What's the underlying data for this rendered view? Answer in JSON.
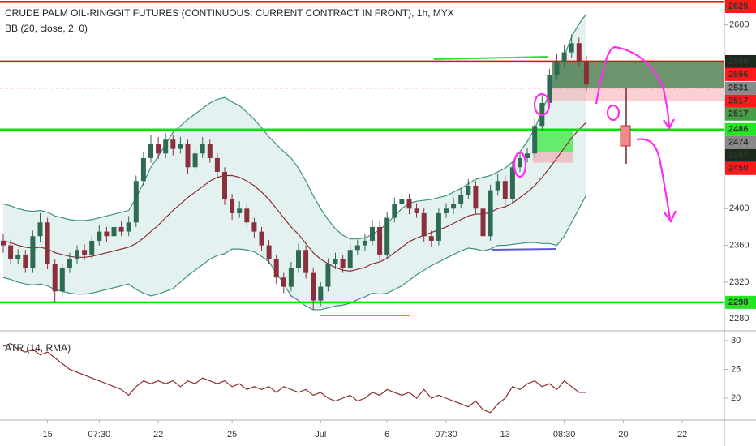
{
  "chart_data": {
    "type": "candlestick",
    "title": "CRUDE PALM OIL-RINGGIT FUTURES (CONTINUOUS: CURRENT CONTRACT IN FRONT), 1h, MYX",
    "indicator_label": "BB (20, close, 2, 0)",
    "categories": [
      null,
      null,
      null,
      null,
      null,
      null,
      "15",
      null,
      null,
      null,
      null,
      null,
      null,
      "07:30",
      null,
      null,
      null,
      null,
      null,
      null,
      null,
      "22",
      null,
      null,
      null,
      null,
      null,
      null,
      null,
      null,
      null,
      "25",
      null,
      null,
      null,
      null,
      null,
      null,
      null,
      null,
      null,
      null,
      null,
      "Jul",
      null,
      null,
      null,
      null,
      null,
      null,
      null,
      null,
      "6",
      null,
      null,
      null,
      null,
      null,
      null,
      null,
      "07:30",
      null,
      null,
      null,
      null,
      null,
      null,
      null,
      "13",
      null,
      null,
      null,
      null,
      null,
      null,
      null,
      "08:30",
      null,
      null,
      null,
      null,
      null,
      null,
      null,
      "20",
      null,
      null,
      null,
      null,
      null,
      null,
      null,
      "22",
      null,
      null,
      null
    ],
    "candles": [
      [
        2365,
        2372,
        2352,
        2360
      ],
      [
        2360,
        2366,
        2340,
        2345
      ],
      [
        2345,
        2356,
        2340,
        2350
      ],
      [
        2350,
        2355,
        2330,
        2335
      ],
      [
        2335,
        2376,
        2330,
        2370
      ],
      [
        2370,
        2395,
        2364,
        2385
      ],
      [
        2385,
        2390,
        2334,
        2340
      ],
      [
        2340,
        2345,
        2298,
        2310
      ],
      [
        2310,
        2340,
        2304,
        2335
      ],
      [
        2335,
        2352,
        2330,
        2345
      ],
      [
        2345,
        2360,
        2340,
        2355
      ],
      [
        2355,
        2361,
        2344,
        2350
      ],
      [
        2350,
        2370,
        2345,
        2365
      ],
      [
        2365,
        2382,
        2360,
        2375
      ],
      [
        2375,
        2380,
        2364,
        2370
      ],
      [
        2370,
        2386,
        2365,
        2380
      ],
      [
        2380,
        2386,
        2370,
        2375
      ],
      [
        2375,
        2392,
        2370,
        2385
      ],
      [
        2385,
        2436,
        2380,
        2430
      ],
      [
        2430,
        2462,
        2425,
        2455
      ],
      [
        2455,
        2480,
        2450,
        2470
      ],
      [
        2470,
        2478,
        2454,
        2460
      ],
      [
        2460,
        2482,
        2455,
        2475
      ],
      [
        2475,
        2480,
        2458,
        2465
      ],
      [
        2465,
        2478,
        2460,
        2470
      ],
      [
        2470,
        2475,
        2438,
        2445
      ],
      [
        2445,
        2466,
        2440,
        2460
      ],
      [
        2460,
        2478,
        2455,
        2470
      ],
      [
        2470,
        2475,
        2450,
        2455
      ],
      [
        2455,
        2460,
        2434,
        2440
      ],
      [
        2440,
        2445,
        2404,
        2410
      ],
      [
        2410,
        2416,
        2388,
        2395
      ],
      [
        2395,
        2408,
        2390,
        2400
      ],
      [
        2400,
        2405,
        2380,
        2385
      ],
      [
        2385,
        2390,
        2368,
        2375
      ],
      [
        2375,
        2380,
        2354,
        2360
      ],
      [
        2360,
        2366,
        2340,
        2345
      ],
      [
        2345,
        2350,
        2318,
        2325
      ],
      [
        2325,
        2330,
        2308,
        2315
      ],
      [
        2315,
        2342,
        2310,
        2335
      ],
      [
        2335,
        2362,
        2330,
        2355
      ],
      [
        2355,
        2360,
        2324,
        2330
      ],
      [
        2330,
        2336,
        2290,
        2300
      ],
      [
        2300,
        2320,
        2294,
        2315
      ],
      [
        2315,
        2346,
        2310,
        2340
      ],
      [
        2340,
        2352,
        2334,
        2345
      ],
      [
        2345,
        2350,
        2330,
        2335
      ],
      [
        2335,
        2362,
        2330,
        2355
      ],
      [
        2355,
        2366,
        2350,
        2360
      ],
      [
        2360,
        2372,
        2354,
        2365
      ],
      [
        2365,
        2388,
        2360,
        2380
      ],
      [
        2380,
        2386,
        2344,
        2350
      ],
      [
        2350,
        2396,
        2345,
        2390
      ],
      [
        2390,
        2412,
        2385,
        2405
      ],
      [
        2405,
        2418,
        2400,
        2410
      ],
      [
        2410,
        2416,
        2394,
        2400
      ],
      [
        2400,
        2406,
        2390,
        2395
      ],
      [
        2395,
        2400,
        2364,
        2370
      ],
      [
        2370,
        2376,
        2358,
        2365
      ],
      [
        2365,
        2400,
        2360,
        2395
      ],
      [
        2395,
        2406,
        2390,
        2400
      ],
      [
        2400,
        2412,
        2394,
        2405
      ],
      [
        2405,
        2422,
        2400,
        2415
      ],
      [
        2415,
        2432,
        2410,
        2425
      ],
      [
        2425,
        2430,
        2394,
        2400
      ],
      [
        2400,
        2406,
        2362,
        2370
      ],
      [
        2370,
        2426,
        2365,
        2420
      ],
      [
        2420,
        2438,
        2414,
        2430
      ],
      [
        2430,
        2436,
        2404,
        2410
      ],
      [
        2410,
        2452,
        2405,
        2445
      ],
      [
        2445,
        2462,
        2440,
        2455
      ],
      [
        2455,
        2466,
        2450,
        2460
      ],
      [
        2460,
        2498,
        2455,
        2490
      ],
      [
        2490,
        2522,
        2485,
        2515
      ],
      [
        2515,
        2552,
        2510,
        2545
      ],
      [
        2545,
        2568,
        2540,
        2560
      ],
      [
        2560,
        2578,
        2554,
        2570
      ],
      [
        2570,
        2590,
        2564,
        2580
      ],
      [
        2580,
        2586,
        2554,
        2560
      ],
      [
        2560,
        2566,
        2528,
        2535
      ]
    ],
    "up_color": "#2f6b52",
    "down_color": "#8a2f3c",
    "bb_middle": [
      2365,
      2363,
      2360,
      2358,
      2357,
      2358,
      2356,
      2352,
      2350,
      2348,
      2347,
      2347,
      2348,
      2350,
      2352,
      2354,
      2356,
      2358,
      2362,
      2368,
      2375,
      2382,
      2390,
      2398,
      2405,
      2412,
      2418,
      2424,
      2430,
      2434,
      2436,
      2436,
      2434,
      2430,
      2425,
      2418,
      2410,
      2400,
      2390,
      2380,
      2372,
      2362,
      2352,
      2345,
      2340,
      2336,
      2333,
      2332,
      2334,
      2336,
      2340,
      2342,
      2346,
      2352,
      2358,
      2364,
      2368,
      2371,
      2374,
      2377,
      2380,
      2384,
      2388,
      2392,
      2394,
      2394,
      2396,
      2400,
      2402,
      2406,
      2412,
      2418,
      2425,
      2434,
      2444,
      2455,
      2466,
      2477,
      2486,
      2494
    ],
    "bb_upper": [
      2405,
      2403,
      2400,
      2398,
      2397,
      2398,
      2396,
      2392,
      2390,
      2388,
      2387,
      2387,
      2388,
      2390,
      2392,
      2394,
      2396,
      2398,
      2412,
      2428,
      2445,
      2457,
      2470,
      2483,
      2490,
      2497,
      2503,
      2509,
      2515,
      2519,
      2521,
      2516,
      2512,
      2505,
      2497,
      2488,
      2478,
      2470,
      2462,
      2455,
      2444,
      2430,
      2414,
      2400,
      2388,
      2378,
      2371,
      2367,
      2367,
      2368,
      2372,
      2377,
      2384,
      2392,
      2400,
      2406,
      2408,
      2409,
      2410,
      2412,
      2414,
      2418,
      2422,
      2427,
      2432,
      2434,
      2436,
      2440,
      2444,
      2451,
      2462,
      2473,
      2487,
      2506,
      2526,
      2547,
      2566,
      2587,
      2601,
      2612
    ],
    "bb_lower": [
      2325,
      2323,
      2320,
      2318,
      2317,
      2318,
      2316,
      2312,
      2310,
      2308,
      2307,
      2307,
      2308,
      2310,
      2312,
      2314,
      2316,
      2318,
      2312,
      2308,
      2305,
      2307,
      2310,
      2313,
      2320,
      2327,
      2333,
      2339,
      2345,
      2349,
      2351,
      2356,
      2356,
      2355,
      2353,
      2348,
      2342,
      2330,
      2318,
      2305,
      2300,
      2294,
      2290,
      2290,
      2292,
      2294,
      2295,
      2297,
      2301,
      2304,
      2308,
      2307,
      2308,
      2312,
      2316,
      2322,
      2328,
      2333,
      2338,
      2342,
      2346,
      2350,
      2354,
      2357,
      2356,
      2354,
      2356,
      2360,
      2360,
      2361,
      2362,
      2363,
      2363,
      2362,
      2362,
      2360,
      2370,
      2385,
      2400,
      2415
    ],
    "bb_line_color": "#3f8f7f",
    "bb_fill": "#e3f2f1",
    "bb_middle_color": "#8b2e2e",
    "ylim": [
      2267,
      2627
    ],
    "yticks": [
      2280,
      2320,
      2360,
      2400,
      2600
    ],
    "grid": false,
    "price_labels": [
      {
        "value": 2625,
        "color": "#ff1a1a"
      },
      {
        "value": 2560,
        "color": "#1c2a1c"
      },
      {
        "value": 2556,
        "color": "#ff1a1a"
      },
      {
        "value": 2531,
        "color": "#8a8a8a"
      },
      {
        "value": 2517,
        "color": "#ff1a1a"
      },
      {
        "value": 2517,
        "color": "#43a047"
      },
      {
        "value": 2486,
        "color": "#22e622"
      },
      {
        "value": 2474,
        "color": "#8a8a8a"
      },
      {
        "value": 2462,
        "color": "#1c2a1c"
      },
      {
        "value": 2450,
        "color": "#ff1a1a"
      },
      {
        "value": 2298,
        "color": "#22e622"
      }
    ],
    "horizontal_lines": [
      {
        "value": 2625,
        "color": "#ff0000"
      },
      {
        "value": 2560,
        "color": "#e01010"
      },
      {
        "value": 2486,
        "color": "#00e600"
      },
      {
        "value": 2298,
        "color": "#00e600"
      }
    ],
    "dotted_line": {
      "value": 2531,
      "color": "#e04040"
    },
    "boxes": [
      {
        "top": 2560,
        "bottom": 2531,
        "color": "rgba(30,90,30,0.65)"
      },
      {
        "top": 2531,
        "bottom": 2517,
        "color": "rgba(245,150,160,0.45)"
      },
      {
        "top": 2486,
        "bottom": 2462,
        "color": "rgba(0,230,0,0.55)"
      },
      {
        "top": 2462,
        "bottom": 2450,
        "color": "rgba(245,150,160,0.5)"
      }
    ],
    "atr": {
      "label": "ATR (14, RMA)",
      "values": [
        29,
        29.5,
        28.5,
        28,
        28.5,
        27.5,
        28,
        27,
        26,
        25,
        24.5,
        24,
        23.5,
        23,
        22.5,
        22,
        21.5,
        20.5,
        22,
        23,
        22.5,
        23,
        22.5,
        23,
        22,
        23,
        22.5,
        23.5,
        23,
        22.5,
        23,
        22,
        22.5,
        21.5,
        22,
        21.5,
        22,
        21,
        22,
        21.5,
        21,
        21.5,
        20.5,
        21,
        20,
        19.5,
        20,
        20.5,
        19.5,
        20,
        21,
        20.5,
        21.5,
        21,
        20.5,
        21,
        20,
        21.5,
        20,
        20.5,
        20,
        19.5,
        19,
        18.5,
        19.5,
        18,
        17.5,
        19,
        20,
        22,
        21.5,
        22.5,
        23,
        22,
        22.5,
        21.5,
        23,
        22,
        21,
        21
      ],
      "color": "#8b2e2e",
      "ylim": [
        16.2,
        31.4
      ],
      "yticks": [
        20,
        25,
        30
      ]
    }
  }
}
